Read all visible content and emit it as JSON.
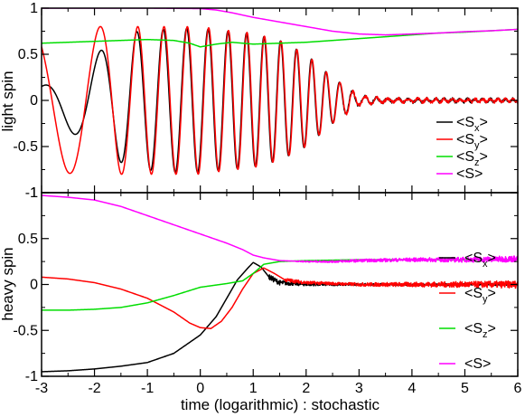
{
  "chart_data": [
    {
      "type": "line",
      "ylabel": "light spin",
      "xlim": [
        -3,
        6
      ],
      "ylim": [
        -1,
        1
      ],
      "yticks": [
        -1,
        -0.5,
        0,
        0.5,
        1
      ],
      "ytick_labels": [
        "-1",
        "-0.5",
        "0",
        "0.5",
        "1"
      ],
      "legend_position": "lower-right",
      "series": [
        {
          "name": "<Sx>",
          "legend": {
            "main_left": "<S",
            "sub": "x",
            "main_right": ">"
          },
          "color": "#000000",
          "kind": "oscillation",
          "params": {
            "amp": [
              [
                -3,
                0.15
              ],
              [
                -2,
                0.5
              ],
              [
                -1.3,
                0.74
              ],
              [
                -0.5,
                0.78
              ],
              [
                0,
                0.78
              ],
              [
                0.5,
                0.75
              ],
              [
                1,
                0.72
              ],
              [
                1.5,
                0.65
              ],
              [
                2,
                0.5
              ],
              [
                2.5,
                0.25
              ],
              [
                3,
                0.05
              ],
              [
                3.5,
                0.02
              ],
              [
                6,
                0.015
              ]
            ],
            "omega": [
              1.5,
              2,
              4,
              5,
              6,
              7,
              8.5,
              11,
              14
            ],
            "phase0": 1.55,
            "offset": 0.0
          }
        },
        {
          "name": "<Sy>",
          "legend": {
            "main_left": "<S",
            "sub": "y",
            "main_right": ">"
          },
          "color": "#ff0000",
          "kind": "oscillation",
          "params": {
            "amp": [
              [
                -3,
                0.78
              ],
              [
                -2,
                0.8
              ],
              [
                -1,
                0.8
              ],
              [
                0,
                0.8
              ],
              [
                0.5,
                0.76
              ],
              [
                1,
                0.73
              ],
              [
                1.5,
                0.65
              ],
              [
                2,
                0.5
              ],
              [
                2.5,
                0.25
              ],
              [
                3,
                0.05
              ],
              [
                3.5,
                0.02
              ],
              [
                6,
                0.015
              ]
            ],
            "omega": [
              1.3,
              1.8,
              4,
              5,
              6,
              7,
              8.5,
              11,
              14
            ],
            "phase0": 2.3,
            "offset": 0.0
          }
        },
        {
          "name": "<Sz>",
          "legend": {
            "main_left": "<S",
            "sub": "z",
            "main_right": ">"
          },
          "color": "#00dd00",
          "kind": "curve",
          "points": [
            [
              -3,
              0.62
            ],
            [
              -2.5,
              0.63
            ],
            [
              -2,
              0.64
            ],
            [
              -1.5,
              0.65
            ],
            [
              -1,
              0.66
            ],
            [
              -0.5,
              0.65
            ],
            [
              -0.2,
              0.62
            ],
            [
              0,
              0.58
            ],
            [
              0.3,
              0.61
            ],
            [
              0.6,
              0.63
            ],
            [
              1,
              0.61
            ],
            [
              1.5,
              0.62
            ],
            [
              2,
              0.63
            ],
            [
              2.5,
              0.65
            ],
            [
              3,
              0.67
            ],
            [
              3.5,
              0.69
            ],
            [
              4,
              0.71
            ],
            [
              4.5,
              0.73
            ],
            [
              5,
              0.74
            ],
            [
              5.5,
              0.755
            ],
            [
              6,
              0.77
            ]
          ]
        },
        {
          "name": "<S>",
          "legend": {
            "main_left": "<S>",
            "sub": "",
            "main_right": ""
          },
          "color": "#ff00ff",
          "kind": "curve",
          "points": [
            [
              -3,
              1.0
            ],
            [
              -2,
              1.0
            ],
            [
              -1,
              1.0
            ],
            [
              0,
              0.995
            ],
            [
              0.3,
              0.98
            ],
            [
              0.6,
              0.95
            ],
            [
              1,
              0.9
            ],
            [
              1.5,
              0.85
            ],
            [
              2,
              0.8
            ],
            [
              2.5,
              0.75
            ],
            [
              3,
              0.72
            ],
            [
              3.5,
              0.71
            ],
            [
              4,
              0.72
            ],
            [
              4.5,
              0.73
            ],
            [
              5,
              0.745
            ],
            [
              5.5,
              0.755
            ],
            [
              6,
              0.77
            ]
          ]
        }
      ]
    },
    {
      "type": "line",
      "xlabel": "time (logarithmic) : stochastic",
      "ylabel": "heavy spin",
      "xlim": [
        -3,
        6
      ],
      "ylim": [
        -1,
        1
      ],
      "xticks": [
        -3,
        -2,
        -1,
        0,
        1,
        2,
        3,
        4,
        5,
        6
      ],
      "xtick_labels": [
        "-3",
        "-2",
        "-1",
        "0",
        "1",
        "2",
        "3",
        "4",
        "5",
        "6"
      ],
      "yticks": [
        -1,
        -0.5,
        0,
        0.5,
        1
      ],
      "ytick_labels": [
        "-1",
        "-0.5",
        "0",
        "0.5",
        "1"
      ],
      "legend_position": "right",
      "series": [
        {
          "name": "<Sx>",
          "legend": {
            "main_left": "<S",
            "sub": "x",
            "main_right": ">"
          },
          "color": "#000000",
          "kind": "curve",
          "noise_after": 1.3,
          "noise_amp": [
            [
              1.3,
              0.03
            ],
            [
              2,
              0.015
            ],
            [
              3,
              0.01
            ],
            [
              6,
              0.01
            ]
          ],
          "noise_offset": [
            [
              1.3,
              0.0
            ],
            [
              6,
              0.0
            ]
          ],
          "points": [
            [
              -3,
              -0.95
            ],
            [
              -2.5,
              -0.94
            ],
            [
              -2,
              -0.92
            ],
            [
              -1.5,
              -0.89
            ],
            [
              -1,
              -0.85
            ],
            [
              -0.5,
              -0.75
            ],
            [
              0,
              -0.55
            ],
            [
              0.3,
              -0.35
            ],
            [
              0.5,
              -0.15
            ],
            [
              0.7,
              0.05
            ],
            [
              0.9,
              0.18
            ],
            [
              1,
              0.24
            ],
            [
              1.15,
              0.19
            ],
            [
              1.3,
              0.08
            ],
            [
              1.5,
              0.02
            ],
            [
              2,
              0.0
            ],
            [
              3,
              0.0
            ],
            [
              6,
              0.0
            ]
          ]
        },
        {
          "name": "<Sy>",
          "legend": {
            "main_left": "<S",
            "sub": "y",
            "main_right": ">"
          },
          "color": "#ff0000",
          "kind": "curve",
          "noise_after": 1.6,
          "noise_amp": [
            [
              1.6,
              0.02
            ],
            [
              2.5,
              0.015
            ],
            [
              4,
              0.025
            ],
            [
              6,
              0.04
            ]
          ],
          "noise_offset": [
            [
              1.6,
              0.0
            ],
            [
              6,
              0.0
            ]
          ],
          "points": [
            [
              -3,
              0.08
            ],
            [
              -2.5,
              0.06
            ],
            [
              -2,
              0.02
            ],
            [
              -1.5,
              -0.05
            ],
            [
              -1,
              -0.15
            ],
            [
              -0.5,
              -0.3
            ],
            [
              -0.2,
              -0.42
            ],
            [
              0,
              -0.47
            ],
            [
              0.2,
              -0.48
            ],
            [
              0.4,
              -0.4
            ],
            [
              0.6,
              -0.25
            ],
            [
              0.8,
              -0.05
            ],
            [
              1,
              0.12
            ],
            [
              1.2,
              0.18
            ],
            [
              1.4,
              0.12
            ],
            [
              1.6,
              0.05
            ],
            [
              2,
              0.02
            ],
            [
              3,
              0.0
            ],
            [
              6,
              0.0
            ]
          ]
        },
        {
          "name": "<Sz>",
          "legend": {
            "main_left": "<S",
            "sub": "z",
            "main_right": ">"
          },
          "color": "#00dd00",
          "kind": "curve",
          "points": [
            [
              -3,
              -0.28
            ],
            [
              -2.5,
              -0.28
            ],
            [
              -2,
              -0.27
            ],
            [
              -1.5,
              -0.25
            ],
            [
              -1,
              -0.2
            ],
            [
              -0.5,
              -0.12
            ],
            [
              0,
              -0.03
            ],
            [
              0.5,
              0.01
            ],
            [
              0.8,
              0.04
            ],
            [
              1,
              0.12
            ],
            [
              1.2,
              0.22
            ],
            [
              1.5,
              0.25
            ],
            [
              2,
              0.26
            ],
            [
              2.5,
              0.265
            ],
            [
              3,
              0.27
            ],
            [
              4,
              0.27
            ],
            [
              6,
              0.27
            ]
          ]
        },
        {
          "name": "<S>",
          "legend": {
            "main_left": "<S>",
            "sub": "",
            "main_right": ""
          },
          "color": "#ff00ff",
          "kind": "curve",
          "noise_after": 1.8,
          "noise_amp": [
            [
              1.8,
              0.005
            ],
            [
              3,
              0.015
            ],
            [
              4,
              0.02
            ],
            [
              6,
              0.035
            ]
          ],
          "noise_offset": [
            [
              1.8,
              0.0
            ],
            [
              6,
              0.0
            ]
          ],
          "points": [
            [
              -3,
              0.97
            ],
            [
              -2.5,
              0.95
            ],
            [
              -2,
              0.92
            ],
            [
              -1.5,
              0.85
            ],
            [
              -1,
              0.75
            ],
            [
              -0.5,
              0.65
            ],
            [
              0,
              0.55
            ],
            [
              0.5,
              0.45
            ],
            [
              0.8,
              0.38
            ],
            [
              1,
              0.32
            ],
            [
              1.2,
              0.29
            ],
            [
              1.5,
              0.26
            ],
            [
              2,
              0.25
            ],
            [
              2.5,
              0.25
            ],
            [
              3,
              0.26
            ],
            [
              4,
              0.27
            ],
            [
              5,
              0.27
            ],
            [
              6,
              0.28
            ]
          ]
        }
      ]
    }
  ]
}
